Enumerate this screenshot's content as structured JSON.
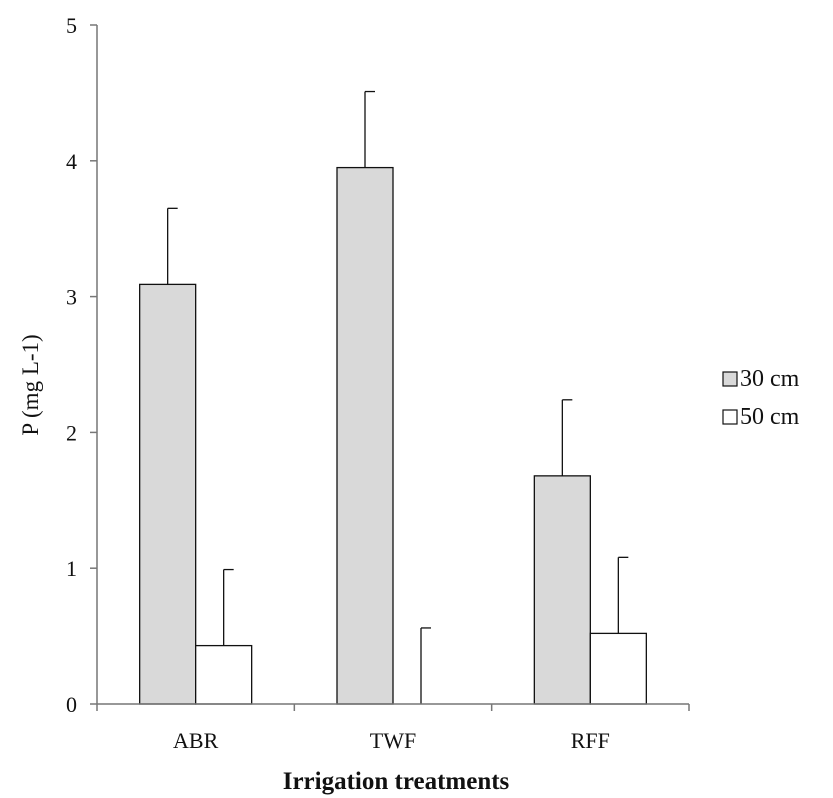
{
  "chart_data": {
    "type": "bar",
    "title": "",
    "xlabel": "Irrigation treatments",
    "ylabel": "P (mg L-1)",
    "categories": [
      "ABR",
      "TWF",
      "RFF"
    ],
    "ylim": [
      0,
      5
    ],
    "yticks": [
      0,
      1,
      2,
      3,
      4,
      5
    ],
    "legend_position": "right",
    "grid": false,
    "series": [
      {
        "name": "30 cm",
        "color": "#d9d9d9",
        "values": [
          3.09,
          3.95,
          1.68
        ],
        "error": [
          0.56,
          0.56,
          0.56
        ]
      },
      {
        "name": "50 cm",
        "color": "#ffffff",
        "values": [
          0.43,
          0.0,
          0.52
        ],
        "error": [
          0.56,
          0.56,
          0.56
        ]
      }
    ]
  }
}
